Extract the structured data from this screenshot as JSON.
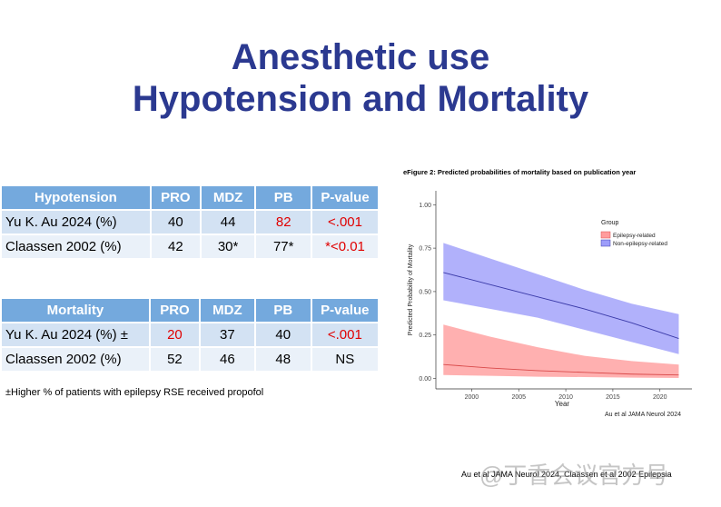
{
  "title": [
    "Anesthetic use",
    "Hypotension and Mortality"
  ],
  "tables": [
    {
      "header": [
        "Hypotension",
        "PRO",
        "MDZ",
        "PB",
        "P-value"
      ],
      "rows": [
        [
          {
            "text": "Yu K. Au 2024  (%)"
          },
          {
            "text": "40"
          },
          {
            "text": "44"
          },
          {
            "text": "82",
            "color": "#e00000"
          },
          {
            "text": "<.001",
            "color": "#e00000"
          }
        ],
        [
          {
            "text": "Claassen 2002 (%)"
          },
          {
            "text": "42"
          },
          {
            "text": "30*"
          },
          {
            "text": "77*"
          },
          {
            "text": "*<0.01",
            "color": "#e00000"
          }
        ]
      ]
    },
    {
      "header": [
        "Mortality",
        "PRO",
        "MDZ",
        "PB",
        "P-value"
      ],
      "rows": [
        [
          {
            "text": "Yu K. Au 2024  (%) ±"
          },
          {
            "text": "20",
            "color": "#e00000"
          },
          {
            "text": "37"
          },
          {
            "text": "40"
          },
          {
            "text": "<.001",
            "color": "#e00000"
          }
        ],
        [
          {
            "text": "Claassen 2002 (%)"
          },
          {
            "text": "52"
          },
          {
            "text": "46"
          },
          {
            "text": "48"
          },
          {
            "text": "NS"
          }
        ]
      ]
    }
  ],
  "footnote": "±Higher % of patients with epilepsy RSE received propofol",
  "citation": "Au et al JAMA Neurol 2024, Claassen et al 2002 Epilepsia",
  "watermark": "@丁香会议官方号",
  "chart_data": {
    "type": "line",
    "title": "eFigure 2: Predicted probabilities of mortality based on publication year",
    "xlabel": "Year",
    "ylabel": "Predicted Probability of Mortality",
    "legend_title": "Group",
    "note": "Au et al JAMA Neurol 2024",
    "x": [
      1997,
      2002,
      2007,
      2012,
      2017,
      2022
    ],
    "series": [
      {
        "name": "Epilepsy-related",
        "color": "#d94a4a",
        "band_color": "#ff9c9c",
        "values": [
          0.08,
          0.06,
          0.045,
          0.035,
          0.025,
          0.02
        ],
        "upper": [
          0.31,
          0.24,
          0.18,
          0.13,
          0.1,
          0.08
        ],
        "lower": [
          0.02,
          0.015,
          0.01,
          0.008,
          0.005,
          0.003
        ]
      },
      {
        "name": "Non-epilepsy-related",
        "color": "#3a3aa8",
        "band_color": "#9d9dfa",
        "values": [
          0.61,
          0.54,
          0.47,
          0.4,
          0.32,
          0.23
        ],
        "upper": [
          0.78,
          0.69,
          0.6,
          0.51,
          0.43,
          0.37
        ],
        "lower": [
          0.45,
          0.4,
          0.35,
          0.28,
          0.21,
          0.14
        ]
      }
    ],
    "xlim": [
      1996.2,
      2023.4
    ],
    "ylim": [
      -0.06,
      1.08
    ],
    "xticks": [
      2000,
      2005,
      2010,
      2015,
      2020
    ],
    "yticks": [
      {
        "value": 0,
        "label": "0.00"
      },
      {
        "value": 0.25,
        "label": "0.25"
      },
      {
        "value": 0.5,
        "label": "0.50"
      },
      {
        "value": 0.75,
        "label": "0.75"
      },
      {
        "value": 1,
        "label": "1.00"
      }
    ]
  }
}
